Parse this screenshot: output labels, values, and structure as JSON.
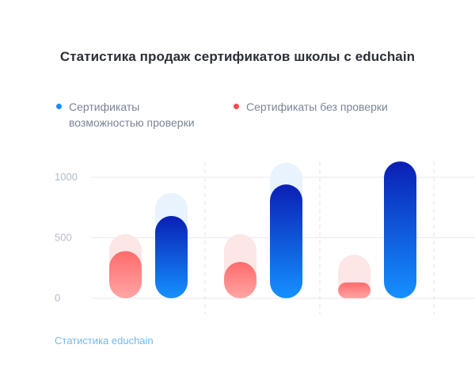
{
  "colors": {
    "blue_top": "#0a1fb4",
    "blue_bottom": "#1591ff",
    "blue_ghost": "#e8f3fd",
    "red_top": "#ff6b6b",
    "red_bottom": "#ffa5a5",
    "red_ghost": "#fde6e6",
    "legend_blue": "#1a8cff",
    "legend_red": "#f34b4b"
  },
  "footer": {
    "text": "Статистика educhain"
  },
  "chart_data": {
    "type": "bar",
    "title": "Статистика продаж сертификатов школы с educhain",
    "xlabel": "",
    "ylabel": "",
    "ylim": [
      0,
      1000
    ],
    "y_ticks": [
      0,
      500,
      1000
    ],
    "grid": true,
    "legend_position": "top",
    "categories": [
      "",
      "",
      ""
    ],
    "series": [
      {
        "name": "Сертификаты возможностью проверки",
        "color": "blue",
        "values": [
          680,
          940,
          1130
        ],
        "background_values": [
          870,
          1120,
          1130
        ]
      },
      {
        "name": "Сертификаты без проверки",
        "color": "red",
        "values": [
          390,
          300,
          130
        ],
        "background_values": [
          530,
          530,
          360
        ]
      }
    ]
  }
}
